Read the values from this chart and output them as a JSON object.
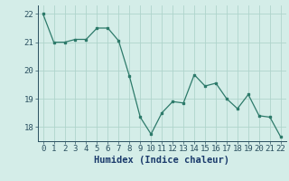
{
  "x": [
    0,
    1,
    2,
    3,
    4,
    5,
    6,
    7,
    8,
    9,
    10,
    11,
    12,
    13,
    14,
    15,
    16,
    17,
    18,
    19,
    20,
    21,
    22
  ],
  "y": [
    22.0,
    21.0,
    21.0,
    21.1,
    21.1,
    21.5,
    21.5,
    21.05,
    19.8,
    18.35,
    17.75,
    18.5,
    18.9,
    18.85,
    19.85,
    19.45,
    19.55,
    19.0,
    18.65,
    19.15,
    18.4,
    18.35,
    17.65
  ],
  "line_color": "#2d7a6a",
  "bg_color": "#d4ede8",
  "grid_color": "#afd4cc",
  "xlabel": "Humidex (Indice chaleur)",
  "ylim": [
    17.5,
    22.3
  ],
  "xlim": [
    -0.5,
    22.5
  ],
  "yticks": [
    18,
    19,
    20,
    21,
    22
  ],
  "xticks": [
    0,
    1,
    2,
    3,
    4,
    5,
    6,
    7,
    8,
    9,
    10,
    11,
    12,
    13,
    14,
    15,
    16,
    17,
    18,
    19,
    20,
    21,
    22
  ],
  "tick_fontsize": 6.5,
  "xlabel_fontsize": 7.5
}
